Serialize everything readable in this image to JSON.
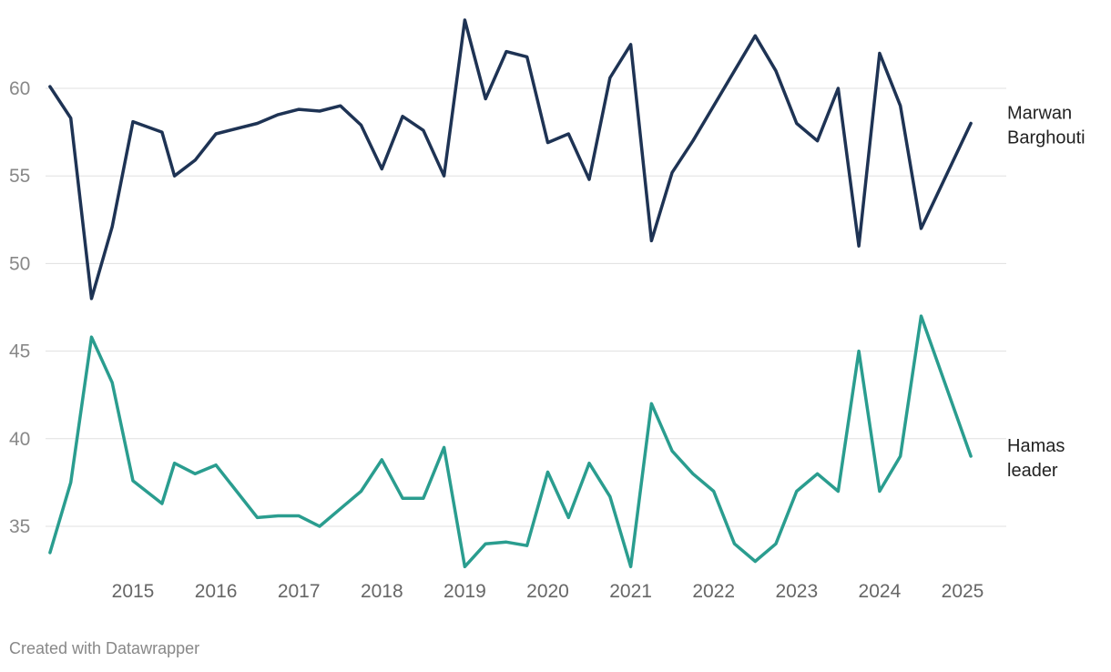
{
  "chart_data": {
    "type": "line",
    "title": "",
    "xlabel": "",
    "ylabel": "",
    "x_tick_labels": [
      "2015",
      "2016",
      "2017",
      "2018",
      "2019",
      "2020",
      "2021",
      "2022",
      "2023",
      "2024",
      "2025"
    ],
    "y_ticks": [
      35,
      40,
      45,
      50,
      55,
      60
    ],
    "ylim": [
      32.5,
      64.5
    ],
    "xlim": [
      2014.1,
      2025.45
    ],
    "grid": true,
    "legend": "direct labels at right end of lines",
    "series": [
      {
        "name": "Marwan Barghouti",
        "label_lines": [
          "Marwan",
          "Barghouti"
        ],
        "color": "#1e3354",
        "points": [
          [
            2014.2,
            60.1
          ],
          [
            2014.45,
            58.3
          ],
          [
            2014.7,
            48.0
          ],
          [
            2014.95,
            52.1
          ],
          [
            2015.2,
            58.1
          ],
          [
            2015.55,
            57.5
          ],
          [
            2015.7,
            55.0
          ],
          [
            2015.95,
            55.9
          ],
          [
            2016.2,
            57.4
          ],
          [
            2016.7,
            58.0
          ],
          [
            2016.95,
            58.5
          ],
          [
            2017.2,
            58.8
          ],
          [
            2017.45,
            58.7
          ],
          [
            2017.7,
            59.0
          ],
          [
            2017.95,
            57.9
          ],
          [
            2018.2,
            55.4
          ],
          [
            2018.45,
            58.4
          ],
          [
            2018.7,
            57.6
          ],
          [
            2018.95,
            55.0
          ],
          [
            2019.2,
            63.9
          ],
          [
            2019.45,
            59.4
          ],
          [
            2019.7,
            62.1
          ],
          [
            2019.95,
            61.8
          ],
          [
            2020.2,
            56.9
          ],
          [
            2020.45,
            57.4
          ],
          [
            2020.7,
            54.8
          ],
          [
            2020.95,
            60.6
          ],
          [
            2021.2,
            62.5
          ],
          [
            2021.45,
            51.3
          ],
          [
            2021.7,
            55.2
          ],
          [
            2021.95,
            57.0
          ],
          [
            2022.7,
            63.0
          ],
          [
            2022.95,
            61.0
          ],
          [
            2023.2,
            58.0
          ],
          [
            2023.45,
            57.0
          ],
          [
            2023.7,
            60.0
          ],
          [
            2023.95,
            51.0
          ],
          [
            2024.2,
            62.0
          ],
          [
            2024.45,
            59.0
          ],
          [
            2024.7,
            52.0
          ],
          [
            2025.3,
            58.0
          ]
        ]
      },
      {
        "name": "Hamas leader",
        "label_lines": [
          "Hamas",
          "leader"
        ],
        "color": "#2a9d8f",
        "points": [
          [
            2014.2,
            33.5
          ],
          [
            2014.45,
            37.5
          ],
          [
            2014.7,
            45.8
          ],
          [
            2014.95,
            43.2
          ],
          [
            2015.2,
            37.6
          ],
          [
            2015.55,
            36.3
          ],
          [
            2015.7,
            38.6
          ],
          [
            2015.95,
            38.0
          ],
          [
            2016.2,
            38.5
          ],
          [
            2016.7,
            35.5
          ],
          [
            2016.95,
            35.6
          ],
          [
            2017.2,
            35.6
          ],
          [
            2017.45,
            35.0
          ],
          [
            2017.95,
            37.0
          ],
          [
            2018.2,
            38.8
          ],
          [
            2018.45,
            36.6
          ],
          [
            2018.7,
            36.6
          ],
          [
            2018.95,
            39.5
          ],
          [
            2019.2,
            32.7
          ],
          [
            2019.45,
            34.0
          ],
          [
            2019.7,
            34.1
          ],
          [
            2019.95,
            33.9
          ],
          [
            2020.2,
            38.1
          ],
          [
            2020.45,
            35.5
          ],
          [
            2020.7,
            38.6
          ],
          [
            2020.95,
            36.7
          ],
          [
            2021.2,
            32.7
          ],
          [
            2021.45,
            42.0
          ],
          [
            2021.7,
            39.3
          ],
          [
            2021.95,
            38.0
          ],
          [
            2022.2,
            37.0
          ],
          [
            2022.45,
            34.0
          ],
          [
            2022.7,
            33.0
          ],
          [
            2022.95,
            34.0
          ],
          [
            2023.2,
            37.0
          ],
          [
            2023.45,
            38.0
          ],
          [
            2023.7,
            37.0
          ],
          [
            2023.95,
            45.0
          ],
          [
            2024.2,
            37.0
          ],
          [
            2024.45,
            39.0
          ],
          [
            2024.7,
            47.0
          ],
          [
            2025.3,
            39.0
          ]
        ]
      }
    ]
  },
  "credit": "Created with Datawrapper"
}
